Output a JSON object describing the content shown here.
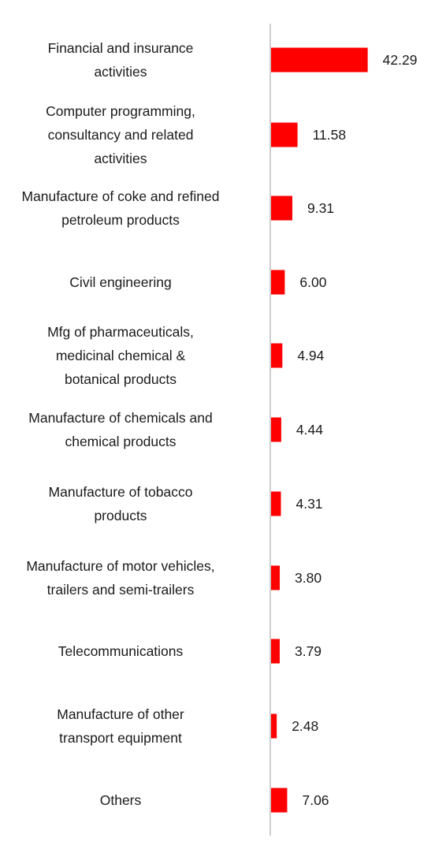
{
  "chart_data": {
    "type": "bar",
    "orientation": "horizontal",
    "title": "",
    "xlabel": "",
    "ylabel": "",
    "grid": false,
    "legend": "none",
    "bar_color": "#ff0000",
    "axis_color": "#cccccc",
    "categories": [
      "Financial and insurance activities",
      "Computer programming, consultancy and related activities",
      "Manufacture of coke and refined petroleum products",
      "Civil engineering",
      "Mfg of pharmaceuticals, medicinal chemical & botanical products",
      "Manufacture of chemicals and chemical products",
      "Manufacture of tobacco products",
      "Manufacture of motor vehicles, trailers and semi-trailers",
      "Telecommunications",
      "Manufacture of other transport equipment",
      "Others"
    ],
    "values": [
      42.29,
      11.58,
      9.31,
      6.0,
      4.94,
      4.44,
      4.31,
      3.8,
      3.79,
      2.48,
      7.06
    ],
    "value_labels": [
      "42.29",
      "11.58",
      "9.31",
      "6.00",
      "4.94",
      "4.44",
      "4.31",
      "3.80",
      "3.79",
      "2.48",
      "7.06"
    ]
  }
}
